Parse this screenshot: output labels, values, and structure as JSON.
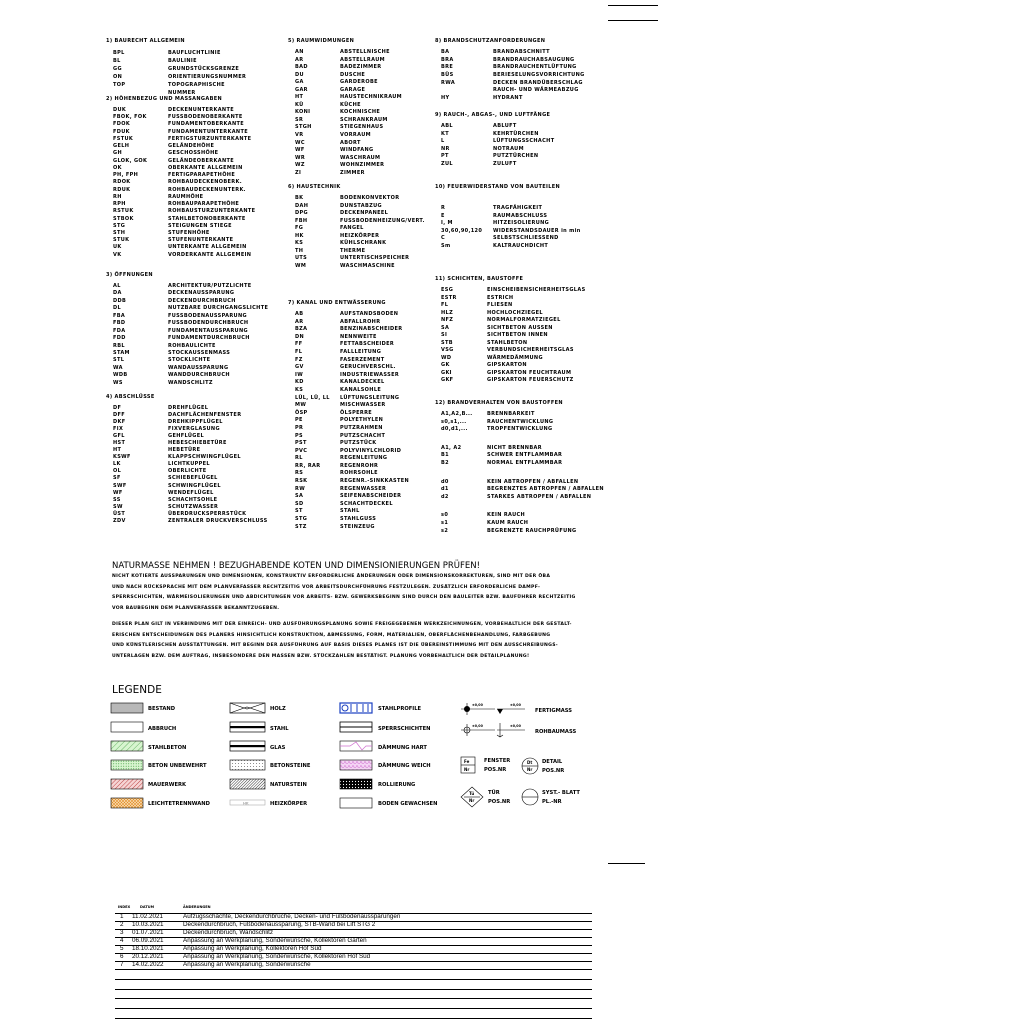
{
  "sections": [
    {
      "title": "1) BAURECHT ALLGEMEIN",
      "items": [
        [
          "BPL",
          "BAUFLUCHTLINIE"
        ],
        [
          "BL",
          "BAULINIE"
        ],
        [
          "GG",
          "GRUNDSTÜCKSGRENZE"
        ],
        [
          "ON",
          "ORIENTIERUNGSNUMMER"
        ],
        [
          "TOP",
          "TOPOGRAPHISCHE"
        ],
        [
          "",
          "NUMMER"
        ]
      ]
    },
    {
      "title": "2) HÖHENBEZUG UND MASSANGABEN",
      "items": [
        [
          "DUK",
          "DECKENUNTERKANTE"
        ],
        [
          "FBOK, FOK",
          "FUSSBODENOBERKANTE"
        ],
        [
          "FDOK",
          "FUNDAMENTOBERKANTE"
        ],
        [
          "FDUK",
          "FUNDAMENTUNTERKANTE"
        ],
        [
          "FSTUK",
          "FERTIGSTURZUNTERKANTE"
        ],
        [
          "GELH",
          "GELÄNDEHÖHE"
        ],
        [
          "GH",
          "GESCHOSSHÖHE"
        ],
        [
          "GLOK, GOK",
          "GELÄNDEOBERKANTE"
        ],
        [
          "OK",
          "OBERKANTE ALLGEMEIN"
        ],
        [
          "PH, FPH",
          "FERTIGPARAPETHÖHE"
        ],
        [
          "RDOK",
          "ROHBAUDECKENOBERK."
        ],
        [
          "RDUK",
          "ROHBAUDECKENUNTERK."
        ],
        [
          "RH",
          "RAUMHÖHE"
        ],
        [
          "RPH",
          "ROHBAUPARAPETHÖHE"
        ],
        [
          "RSTUK",
          "ROHBAUSTURZUNTERKANTE"
        ],
        [
          "STBOK",
          "STAHLBETONOBERKANTE"
        ],
        [
          "STG",
          "STEIGUNGEN STIEGE"
        ],
        [
          "STH",
          "STUFENHÖHE"
        ],
        [
          "STUK",
          "STUFENUNTERKANTE"
        ],
        [
          "UK",
          "UNTERKANTE ALLGEMEIN"
        ],
        [
          "VK",
          "VORDERKANTE ALLGEMEIN"
        ]
      ]
    },
    {
      "title": "3) ÖFFNUNGEN",
      "items": [
        [
          "AL",
          "ARCHITEKTUR/PUTZLICHTE"
        ],
        [
          "DA",
          "DECKENAUSSPARUNG"
        ],
        [
          "DDB",
          "DECKENDURCHBRUCH"
        ],
        [
          "DL",
          "NUTZBARE DURCHGANGSLICHTE"
        ],
        [
          "FBA",
          "FUSSBODENAUSSPARUNG"
        ],
        [
          "FBD",
          "FUSSBODENDURCHBRUCH"
        ],
        [
          "FDA",
          "FUNDAMENTAUSSPARUNG"
        ],
        [
          "FDD",
          "FUNDAMENTDURCHBRUCH"
        ],
        [
          "RBL",
          "ROHBAULICHTE"
        ],
        [
          "STAM",
          "STOCKAUSSENMASS"
        ],
        [
          "STL",
          "STOCKLICHTE"
        ],
        [
          "WA",
          "WANDAUSSPARUNG"
        ],
        [
          "WDB",
          "WANDDURCHBRUCH"
        ],
        [
          "WS",
          "WANDSCHLITZ"
        ]
      ]
    },
    {
      "title": "4) ABSCHLÜSSE",
      "items": [
        [
          "DF",
          "DREHFLÜGEL"
        ],
        [
          "DFF",
          "DACHFLÄCHENFENSTER"
        ],
        [
          "DKF",
          "DREHKIPPFLÜGEL"
        ],
        [
          "FIX",
          "FIXVERGLASUNG"
        ],
        [
          "GFL",
          "GEHFLÜGEL"
        ],
        [
          "HST",
          "HEBESCHIEBETÜRE"
        ],
        [
          "HT",
          "HEBETÜRE"
        ],
        [
          "KSWF",
          "KLAPPSCHWINGFLÜGEL"
        ],
        [
          "LK",
          "LICHTKUPPEL"
        ],
        [
          "OL",
          "OBERLICHTE"
        ],
        [
          "SF",
          "SCHIEBEFLÜGEL"
        ],
        [
          "SWF",
          "SCHWINGFLÜGEL"
        ],
        [
          "WF",
          "WENDEFLÜGEL"
        ],
        [
          "SS",
          "SCHACHTSOHLE"
        ],
        [
          "SW",
          "SCHUTZWASSER"
        ],
        [
          "ÜST",
          "ÜBERDRUCKSPERRSTÜCK"
        ],
        [
          "ZDV",
          "ZENTRALER DRUCKVERSCHLUSS"
        ]
      ]
    },
    {
      "title": "5) RAUMWIDMUNGEN",
      "items": [
        [
          "AN",
          "ABSTELLNISCHE"
        ],
        [
          "AR",
          "ABSTELLRAUM"
        ],
        [
          "BAD",
          "BADEZIMMER"
        ],
        [
          "DU",
          "DUSCHE"
        ],
        [
          "GA",
          "GARDEROBE"
        ],
        [
          "GAR",
          "GARAGE"
        ],
        [
          "HT",
          "HAUSTECHNIKRAUM"
        ],
        [
          "KÜ",
          "KÜCHE"
        ],
        [
          "KONI",
          "KOCHNISCHE"
        ],
        [
          "SR",
          "SCHRANKRAUM"
        ],
        [
          "STGH",
          "STIEGENHAUS"
        ],
        [
          "VR",
          "VORRAUM"
        ],
        [
          "WC",
          "ABORT"
        ],
        [
          "WF",
          "WINDFANG"
        ],
        [
          "WR",
          "WASCHRAUM"
        ],
        [
          "WZ",
          "WOHNZIMMER"
        ],
        [
          "ZI",
          "ZIMMER"
        ]
      ]
    },
    {
      "title": "6) HAUSTECHNIK",
      "items": [
        [
          "BK",
          "BODENKONVEKTOR"
        ],
        [
          "DAH",
          "DUNSTABZUG"
        ],
        [
          "DPG",
          "DECKENPANEEL"
        ],
        [
          "FBH",
          "FUSSBODENHEIZUNG/VERT."
        ],
        [
          "FG",
          "FANGEL"
        ],
        [
          "HK",
          "HEIZKÖRPER"
        ],
        [
          "KS",
          "KÜHLSCHRANK"
        ],
        [
          "TH",
          "THERME"
        ],
        [
          "UTS",
          "UNTERTISCHSPEICHER"
        ],
        [
          "WM",
          "WASCHMASCHINE"
        ]
      ]
    },
    {
      "title": "7) KANAL UND ENTWÄSSERUNG",
      "items": [
        [
          "AB",
          "AUFSTANDSBODEN"
        ],
        [
          "AR",
          "ABFALLROHR"
        ],
        [
          "BZA",
          "BENZINABSCHEIDER"
        ],
        [
          "DN",
          "NENNWEITE"
        ],
        [
          "FF",
          "FETTABSCHEIDER"
        ],
        [
          "FL",
          "FALLLEITUNG"
        ],
        [
          "FZ",
          "FASERZEMENT"
        ],
        [
          "GV",
          "GERUCHVERSCHL."
        ],
        [
          "IW",
          "INDUSTRIEWASSER"
        ],
        [
          "KD",
          "KANALDECKEL"
        ],
        [
          "KS",
          "KANALSOHLE"
        ],
        [
          "LÜL, LÜ, LL",
          "LÜFTUNGSLEITUNG"
        ],
        [
          "MW",
          "MISCHWASSER"
        ],
        [
          "ÖSP",
          "ÖLSPERRE"
        ],
        [
          "PE",
          "POLYETHYLEN"
        ],
        [
          "PR",
          "PUTZRAHMEN"
        ],
        [
          "PS",
          "PUTZSCHACHT"
        ],
        [
          "PST",
          "PUTZSTÜCK"
        ],
        [
          "PVC",
          "POLYVINYLCHLORID"
        ],
        [
          "RL",
          "REGENLEITUNG"
        ],
        [
          "RR, RAR",
          "REGENROHR"
        ],
        [
          "RS",
          "ROHRSOHLE"
        ],
        [
          "RSK",
          "REGENR.-SINKKASTEN"
        ],
        [
          "RW",
          "REGENWASSER"
        ],
        [
          "SA",
          "SEIFENABSCHEIDER"
        ],
        [
          "SD",
          "SCHACHTDECKEL"
        ],
        [
          "ST",
          "STAHL"
        ],
        [
          "STG",
          "STAHLGUSS"
        ],
        [
          "STZ",
          "STEINZEUG"
        ]
      ]
    },
    {
      "title": "8) BRANDSCHUTZANFORDERUNGEN",
      "items": [
        [
          "BA",
          "BRANDABSCHNITT"
        ],
        [
          "BRA",
          "BRANDRAUCHABSAUGUNG"
        ],
        [
          "BRE",
          "BRANDRAUCHENTLÜFTUNG"
        ],
        [
          "BÜS",
          "BERIESELUNGSVORRICHTUNG"
        ],
        [
          "RWA",
          "DECKEN BRANDÜBERSCHLAG"
        ],
        [
          "",
          "RAUCH- UND WÄRMEABZUG"
        ],
        [
          "HY",
          "HYDRANT"
        ]
      ]
    },
    {
      "title": "9) RAUCH-, ABGAS-, UND LUFTFÄNGE",
      "items": [
        [
          "ABL",
          "ABLUFT"
        ],
        [
          "KT",
          "KEHRTÜRCHEN"
        ],
        [
          "L",
          "LÜFTUNGSSCHACHT"
        ],
        [
          "NR",
          "NOTRAUM"
        ],
        [
          "PT",
          "PUTZTÜRCHEN"
        ],
        [
          "ZUL",
          "ZULUFT"
        ]
      ]
    },
    {
      "title": "10) FEUERWIDERSTAND VON BAUTEILEN",
      "items": [
        [
          "R",
          "TRAGFÄHIGKEIT"
        ],
        [
          "E",
          "RAUMABSCHLUSS"
        ],
        [
          "I, M",
          "HITZEISOLIERUNG"
        ],
        [
          "30,60,90,120",
          "WIDERSTANDSDAUER in min"
        ],
        [
          "C",
          "SELBSTSCHLIESSEND"
        ],
        [
          "Sm",
          "KALTRAUCHDICHT"
        ]
      ]
    },
    {
      "title": "11) SCHICHTEN, BAUSTOFFE",
      "items": [
        [
          "ESG",
          "EINSCHEIBENSICHERHEITSGLAS"
        ],
        [
          "ESTR",
          "ESTRICH"
        ],
        [
          "FL",
          "FLIESEN"
        ],
        [
          "HLZ",
          "HOCHLOCHZIEGEL"
        ],
        [
          "NFZ",
          "NORMALFORMATZIEGEL"
        ],
        [
          "SA",
          "SICHTBETON AUSSEN"
        ],
        [
          "SI",
          "SICHTBETON INNEN"
        ],
        [
          "STB",
          "STAHLBETON"
        ],
        [
          "VSG",
          "VERBUNDSICHERHEITSGLAS"
        ],
        [
          "WD",
          "WÄRMEDÄMMUNG"
        ],
        [
          "GK",
          "GIPSKARTON"
        ],
        [
          "GKI",
          "GIPSKARTON FEUCHTRAUM"
        ],
        [
          "GKF",
          "GIPSKARTON FEUERSCHUTZ"
        ]
      ]
    },
    {
      "title": "12) BRANDVERHALTEN VON BAUSTOFFEN",
      "groups": [
        [
          [
            "A1,A2,B...",
            "BRENNBARKEIT"
          ],
          [
            "s0,s1,...",
            "RAUCHENTWICKLUNG"
          ],
          [
            "d0,d1,...",
            "TROPFENTWICKLUNG"
          ]
        ],
        [
          [
            "A1, A2",
            "NICHT BRENNBAR"
          ],
          [
            "B1",
            "SCHWER ENTFLAMMBAR"
          ],
          [
            "B2",
            "NORMAL ENTFLAMMBAR"
          ]
        ],
        [
          [
            "d0",
            "KEIN ABTROPFEN / ABFALLEN"
          ],
          [
            "d1",
            "BEGRENZTES ABTROPFEN / ABFALLEN"
          ],
          [
            "d2",
            "STARKES ABTROPFEN / ABFALLEN"
          ]
        ],
        [
          [
            "s0",
            "KEIN RAUCH"
          ],
          [
            "s1",
            "KAUM RAUCH"
          ],
          [
            "s2",
            "BEGRENZTE RAUCHPRÜFUNG"
          ]
        ]
      ]
    }
  ],
  "notes": {
    "title": "NATURMASSE NEHMEN !  BEZUGHABENDE KOTEN UND DIMENSIONIERUNGEN PRÜFEN!",
    "para1": [
      "NICHT KOTIERTE AUSSPARUNGEN UND DIMENSIONEN, KONSTRUKTIV ERFORDERLICHE ÄNDERUNGEN ODER DIMENSIONSKORREKTUREN, SIND MIT DER ÖBA",
      "UND NACH RÜCKSPRACHE MIT DEM PLANVERFASSER RECHTZEITIG VOR ARBEITSDURCHFÜHRUNG FESTZULEGEN. ZUSÄTZLICH ERFORDERLICHE DAMPF-",
      "SPERRSCHICHTEN, WÄRMEISOLIERUNGEN UND ABDICHTUNGEN VOR ARBEITS- BZW. GEWERKSBEGINN SIND DURCH DEN BAULEITER BZW. BAUFÜHRER RECHTZEITIG",
      "VOR BAUBEGINN DEM PLANVERFASSER BEKANNTZUGEBEN."
    ],
    "para2": [
      "DIESER PLAN GILT IN VERBINDUNG MIT DER EINREICH- UND AUSFÜHRUNGSPLANUNG SOWIE FREIGEGEBENEN WERKZEICHNUNGEN, VORBEHALTLICH DER GESTALT-",
      "ERISCHEN ENTSCHEIDUNGEN DES PLANERS HINSICHTLICH KONSTRUKTION, ABMESSUNG, FORM, MATERIALIEN, OBERFLÄCHENBEHANDLUNG, FARBGEBUNG",
      "UND KÜNSTLERISCHEN AUSSTATTUNGEN. MIT BEGINN DER AUSFÜHRUNG AUF BASIS DIESES PLANES IST DIE ÜBEREINSTIMMUNG MIT DEN AUSSCHREIBUNGS-",
      "UNTERLAGEN BZW. DEM AUFTRAG, INSBESONDERE DEN MASSEN BZW. STÜCKZAHLEN BESTÄTIGT. PLANUNG VORBEHALTLICH DER DETAILPLANUNG!"
    ]
  },
  "legend": {
    "title": "LEGENDE",
    "col1": [
      "BESTAND",
      "ABBRUCH",
      "STAHLBETON",
      "BETON UNBEWEHRT",
      "MAUERWERK",
      "LEICHTETRENNWAND"
    ],
    "col2": [
      "HOLZ",
      "STAHL",
      "GLAS",
      "BETONSTEINE",
      "NATURSTEIN",
      "HEIZKÖRPER"
    ],
    "col3": [
      "STAHLPROFILE",
      "SPERRSCHICHTEN",
      "DÄMMUNG HART",
      "DÄMMUNG WEICH",
      "ROLLIERUNG",
      "BODEN GEWACHSEN"
    ],
    "heater_tag": "HK",
    "level_tag": "±0,00",
    "fertigmass": "FERTIGMASS",
    "rohbaumass": "ROHBAUMASS",
    "fenster": {
      "l1": "FENSTER",
      "l2": "POS.NR",
      "top": "Fe",
      "bottom": "Nr"
    },
    "detail": {
      "l1": "DETAIL",
      "l2": "POS.NR",
      "top": "Dt",
      "bottom": "Nr"
    },
    "tuer": {
      "l1": "TÜR",
      "l2": "POS.NR",
      "top": "Tü",
      "bottom": "Nr"
    },
    "syst": {
      "l1": "SYST.- BLATT",
      "l2": "PL.-NR"
    },
    "colors": {
      "bestand": "#b8b8b8",
      "stahlbeton": "#3a9a3a",
      "mauerwerk": "#b02020",
      "leichtwand": "#e08a20",
      "stahlprofil": "#1a3fc0",
      "daemmung": "#d070d0"
    }
  },
  "revisions": {
    "headers": [
      "INDEX",
      "DATUM",
      "ÄNDERUNGEN"
    ],
    "rows": [
      [
        "1",
        "11.02.2021",
        "Aufzugsschächte, Deckendurchbrüche, Decken- und Fußbodenaussparungen"
      ],
      [
        "2",
        "10.03.2021",
        "Deckendurchbruch, Fußbodenaussparung, STB-Wand bei Lift STG 2"
      ],
      [
        "3",
        "01.07.2021",
        "Deckendurchbruch, Wandschlitz"
      ],
      [
        "4",
        "06.09.2021",
        "Anpassung an Werkplanung, Sonderwünsche, Kollektoren Garten"
      ],
      [
        "5",
        "18.10.2021",
        "Anpassung an Werkplanung, Kollektoren Hof Süd"
      ],
      [
        "6",
        "20.12.2021",
        "Anpassung an Werkplanung, Sonderwünsche, Kollektoren Hof Süd"
      ],
      [
        "7",
        "14.02.2022",
        "Anpassung an Werkplanung, Sonderwünsche"
      ]
    ]
  }
}
